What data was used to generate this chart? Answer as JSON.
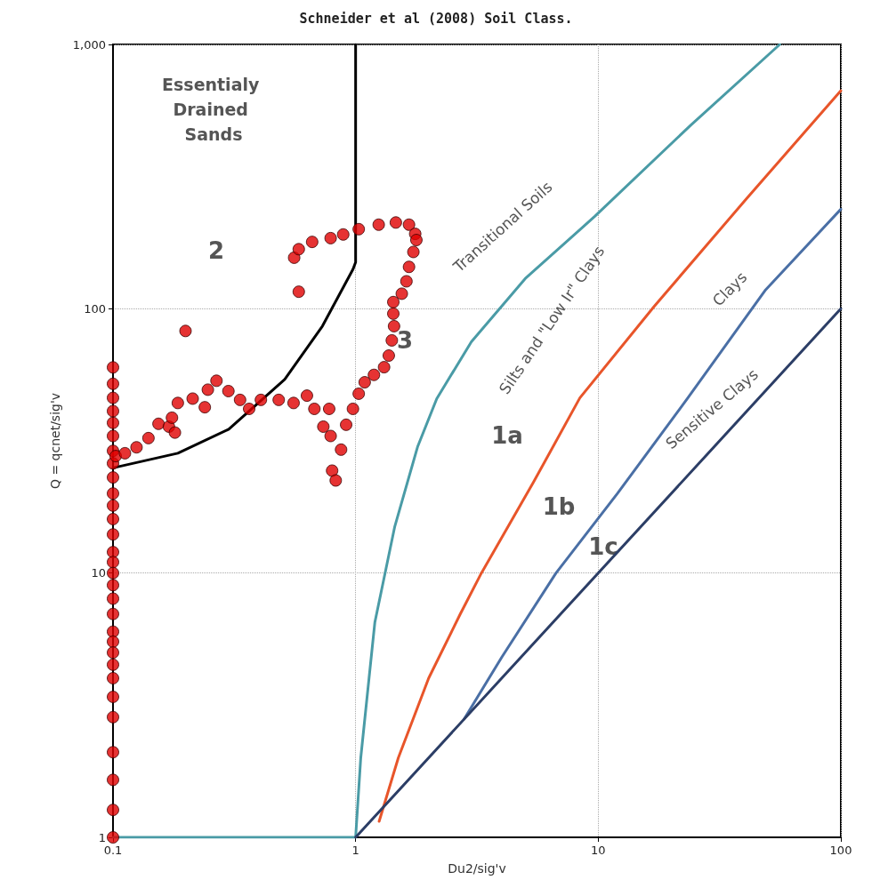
{
  "chart_data": {
    "type": "line",
    "title": "Schneider et al (2008) Soil Class.",
    "xlabel": "Du2/sig'v",
    "ylabel": "Q = qcnet/sig'v",
    "log": "xy",
    "grid": true,
    "xlim": [
      0.1,
      100
    ],
    "xticks": [
      0.1,
      1,
      10,
      100
    ],
    "ylim": [
      1,
      1000
    ],
    "yticks": [
      1,
      10,
      100,
      {
        "value": 1000,
        "label": "1,000"
      }
    ],
    "series": [
      {
        "color": "#000000",
        "marker": "none",
        "x": [
          0.1,
          0.185,
          0.3,
          0.51,
          0.73,
          0.975,
          1,
          1
        ],
        "values": [
          25,
          28.4,
          35,
          54,
          86,
          141,
          150,
          1000
        ]
      },
      {
        "color": "#4a9ba6",
        "marker": "none",
        "x": [
          0.1,
          1,
          1.05,
          1.2,
          1.45,
          1.8,
          2.16,
          3,
          5,
          9.7,
          24,
          56
        ],
        "values": [
          1,
          1,
          2,
          6.5,
          15,
          30,
          45.7,
          75,
          130,
          224,
          494,
          1000
        ]
      },
      {
        "color": "#e8552a",
        "marker": "none",
        "x": [
          1.25,
          1.5,
          2,
          2.7,
          3.3,
          5.4,
          8.4,
          17,
          41,
          100
        ],
        "values": [
          1.15,
          2,
          4,
          7,
          10,
          22,
          46,
          102,
          262,
          668
        ]
      },
      {
        "color": "#4a6fa5",
        "marker": "none",
        "x": [
          2.8,
          4,
          6.7,
          12,
          23.3,
          49,
          100
        ],
        "values": [
          2.8,
          4.8,
          10,
          20,
          45.7,
          118,
          238
        ]
      },
      {
        "color": "#2c3e66",
        "marker": "none",
        "x": [
          1,
          100
        ],
        "values": [
          1,
          100
        ]
      },
      {
        "type": "scatter",
        "color": "#e00000",
        "marker": "circle",
        "x": [
          0.1,
          0.1,
          0.1,
          0.1,
          0.1,
          0.1,
          0.1,
          0.1,
          0.1,
          0.1,
          0.1,
          0.1,
          0.1,
          0.1,
          0.1,
          0.1,
          0.1,
          0.1,
          0.1,
          0.1,
          0.1,
          0.1,
          0.1,
          0.1,
          0.1,
          0.1,
          0.1,
          0.1,
          0.1,
          0.1,
          0.1026,
          0.112,
          0.125,
          0.14,
          0.154,
          0.17,
          0.18,
          0.175,
          0.185,
          0.213,
          0.239,
          0.246,
          0.267,
          0.299,
          0.334,
          0.364,
          0.407,
          0.482,
          0.555,
          0.63,
          0.676,
          0.736,
          0.778,
          0.789,
          0.871,
          0.8,
          0.828,
          0.199,
          0.558,
          0.583,
          0.583,
          0.662,
          0.789,
          0.889,
          1.03,
          1.245,
          1.465,
          1.66,
          1.76,
          1.78,
          1.73,
          1.66,
          1.62,
          1.55,
          1.43,
          1.43,
          1.44,
          1.41,
          1.37,
          1.31,
          1.19,
          1.09,
          1.03,
          0.975,
          0.914
        ],
        "values": [
          60,
          52,
          46,
          41,
          37,
          33,
          29,
          26,
          23,
          20,
          18,
          16,
          14,
          12,
          11,
          10,
          9,
          8,
          7,
          6,
          5.5,
          5,
          4.5,
          4,
          3.4,
          2.85,
          2.1,
          1.65,
          1.27,
          1,
          27.7,
          28.4,
          29.9,
          32.4,
          36.7,
          35.8,
          34,
          38.7,
          44,
          45.7,
          42.4,
          49.4,
          53.4,
          48.8,
          45.2,
          41.8,
          45.2,
          45.2,
          44,
          46.9,
          41.8,
          35.8,
          41.8,
          33,
          29.3,
          24.4,
          22.4,
          82.4,
          156,
          168,
          116,
          179,
          185,
          191,
          200,
          208,
          212,
          208,
          192,
          182,
          164,
          144,
          127,
          114,
          106,
          95.8,
          85.9,
          75.9,
          66.5,
          60.1,
          56.2,
          52.7,
          47.7,
          41.8,
          36.4
        ]
      }
    ],
    "annotations": [
      "Essentialy Drained Sands",
      "2",
      "3",
      "Transitional Soils",
      "Silts and \"Low Ir\" Clays",
      "Clays",
      "Sensitive Clays",
      "1a",
      "1b",
      "1c"
    ]
  }
}
